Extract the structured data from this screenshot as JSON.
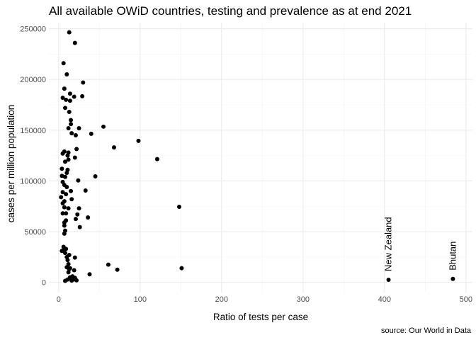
{
  "chart_data": {
    "type": "scatter",
    "title": "All available OWiD countries, testing and prevalence as at end 2021",
    "xlabel": "Ratio of tests per case",
    "ylabel": "cases per million population",
    "caption": "source: Our World in Data",
    "xlim": [
      -12,
      508
    ],
    "ylim": [
      -10000,
      256000
    ],
    "x_ticks": [
      0,
      100,
      200,
      300,
      400,
      500
    ],
    "y_ticks": [
      0,
      50000,
      100000,
      150000,
      200000,
      250000
    ],
    "x_tick_labels": [
      "0",
      "100",
      "200",
      "300",
      "400",
      "500"
    ],
    "y_tick_labels": [
      "0",
      "50000",
      "100000",
      "150000",
      "200000",
      "250000"
    ],
    "grid": true,
    "point_color": "#000000",
    "annotations": [
      {
        "label": "New Zealand",
        "x": 405,
        "y": 2600
      },
      {
        "label": "Bhutan",
        "x": 484,
        "y": 3400
      }
    ],
    "points": [
      [
        13,
        246500
      ],
      [
        20,
        236000
      ],
      [
        6,
        216000
      ],
      [
        10,
        205000
      ],
      [
        30,
        197000
      ],
      [
        7,
        191000
      ],
      [
        14,
        186000
      ],
      [
        5,
        182000
      ],
      [
        19,
        183000
      ],
      [
        29,
        183500
      ],
      [
        9,
        180000
      ],
      [
        14,
        179000
      ],
      [
        8,
        172000
      ],
      [
        13,
        168000
      ],
      [
        15,
        160000
      ],
      [
        15,
        156000
      ],
      [
        12,
        152000
      ],
      [
        25,
        152000
      ],
      [
        55,
        153500
      ],
      [
        16,
        147000
      ],
      [
        40,
        146500
      ],
      [
        21,
        145000
      ],
      [
        98,
        139500
      ],
      [
        68,
        133000
      ],
      [
        22,
        131500
      ],
      [
        7,
        129000
      ],
      [
        5,
        127000
      ],
      [
        12,
        128000
      ],
      [
        11,
        125000
      ],
      [
        20,
        123000
      ],
      [
        121,
        121500
      ],
      [
        12,
        121000
      ],
      [
        8,
        119000
      ],
      [
        4,
        112000
      ],
      [
        11,
        111000
      ],
      [
        10,
        108000
      ],
      [
        4,
        105000
      ],
      [
        8,
        104000
      ],
      [
        45,
        104500
      ],
      [
        5,
        99000
      ],
      [
        24,
        100500
      ],
      [
        7,
        96000
      ],
      [
        10,
        94000
      ],
      [
        15,
        90000
      ],
      [
        33,
        90500
      ],
      [
        5,
        89000
      ],
      [
        9,
        87000
      ],
      [
        3,
        84000
      ],
      [
        16,
        82000
      ],
      [
        7,
        80000
      ],
      [
        5,
        78000
      ],
      [
        148,
        74500
      ],
      [
        7,
        74000
      ],
      [
        12,
        73000
      ],
      [
        25,
        73000
      ],
      [
        9,
        68000
      ],
      [
        5,
        68000
      ],
      [
        23,
        67000
      ],
      [
        36,
        64000
      ],
      [
        21,
        62500
      ],
      [
        9,
        61000
      ],
      [
        7,
        59000
      ],
      [
        7,
        56000
      ],
      [
        26,
        54500
      ],
      [
        8,
        51000
      ],
      [
        7,
        48000
      ],
      [
        6,
        35000
      ],
      [
        9,
        33000
      ],
      [
        6,
        31500
      ],
      [
        4,
        31000
      ],
      [
        8,
        29000
      ],
      [
        13,
        27000
      ],
      [
        10,
        25000
      ],
      [
        20,
        24500
      ],
      [
        11,
        22000
      ],
      [
        12,
        18000
      ],
      [
        61,
        17500
      ],
      [
        10,
        15000
      ],
      [
        14,
        14000
      ],
      [
        151,
        14000
      ],
      [
        13,
        13000
      ],
      [
        72,
        12500
      ],
      [
        19,
        12000
      ],
      [
        12,
        10000
      ],
      [
        38,
        8000
      ],
      [
        17,
        6000
      ],
      [
        14,
        5000
      ],
      [
        20,
        4500
      ],
      [
        19,
        3000
      ],
      [
        11,
        2800
      ],
      [
        22,
        2000
      ],
      [
        16,
        1800
      ],
      [
        8,
        1500
      ],
      [
        405,
        2600
      ],
      [
        484,
        3400
      ]
    ]
  }
}
